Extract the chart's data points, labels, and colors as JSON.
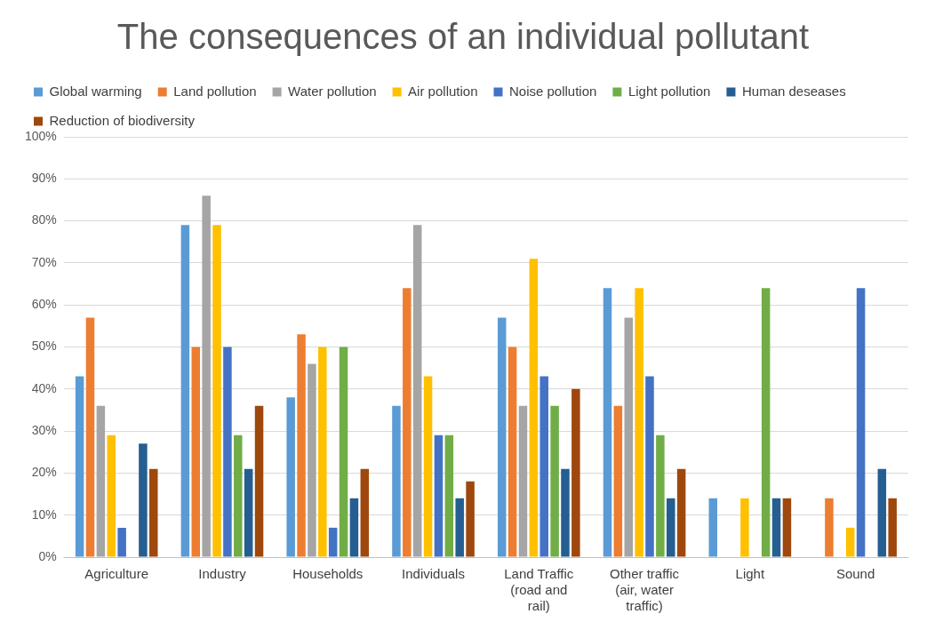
{
  "chart_data": {
    "type": "bar",
    "title": "The consequences of an individual pollutant",
    "categories": [
      "Agriculture",
      "Industry",
      "Households",
      "Individuals",
      "Land Traffic (road and rail)",
      "Other traffic (air, water traffic)",
      "Light",
      "Sound"
    ],
    "series": [
      {
        "name": "Global warming",
        "color": "#5b9bd5",
        "values": [
          43,
          79,
          38,
          36,
          57,
          64,
          14,
          0
        ]
      },
      {
        "name": "Land pollution",
        "color": "#ed7d31",
        "values": [
          57,
          50,
          53,
          64,
          50,
          36,
          0,
          14
        ]
      },
      {
        "name": "Water pollution",
        "color": "#a5a5a5",
        "values": [
          36,
          86,
          46,
          79,
          36,
          57,
          0,
          0
        ]
      },
      {
        "name": "Air pollution",
        "color": "#ffc000",
        "values": [
          29,
          79,
          50,
          43,
          71,
          64,
          14,
          7
        ]
      },
      {
        "name": "Noise pollution",
        "color": "#4472c4",
        "values": [
          7,
          50,
          7,
          29,
          43,
          43,
          0,
          64
        ]
      },
      {
        "name": "Light pollution",
        "color": "#70ad47",
        "values": [
          0,
          29,
          50,
          29,
          36,
          29,
          64,
          0
        ]
      },
      {
        "name": "Human deseases",
        "color": "#255e91",
        "values": [
          27,
          21,
          14,
          14,
          21,
          14,
          14,
          21
        ]
      },
      {
        "name": "Reduction of biodiversity",
        "color": "#9e480e",
        "values": [
          21,
          36,
          21,
          18,
          40,
          21,
          14,
          14
        ]
      }
    ],
    "ylim": [
      0,
      100
    ],
    "yticks": [
      {
        "value": 0,
        "label": "0%"
      },
      {
        "value": 10,
        "label": "10%"
      },
      {
        "value": 20,
        "label": "20%"
      },
      {
        "value": 30,
        "label": "30%"
      },
      {
        "value": 40,
        "label": "40%"
      },
      {
        "value": 50,
        "label": "50%"
      },
      {
        "value": 60,
        "label": "60%"
      },
      {
        "value": 70,
        "label": "70%"
      },
      {
        "value": 80,
        "label": "80%"
      },
      {
        "value": 90,
        "label": "90%"
      },
      {
        "value": 100,
        "label": "100%"
      }
    ],
    "grid": "y",
    "legend": "top"
  }
}
